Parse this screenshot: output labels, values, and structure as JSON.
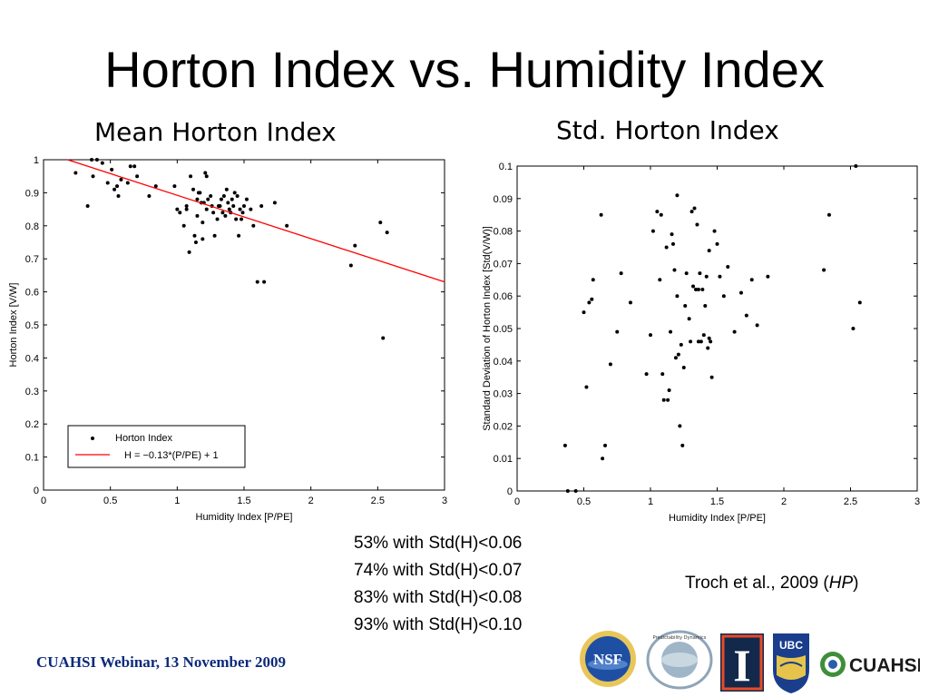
{
  "slide_title": "Horton Index vs. Humidity Index",
  "left_panel_title": "Mean Horton Index",
  "right_panel_title": "Std. Horton Index",
  "stats": [
    "53% with Std(H)<0.06",
    "74% with Std(H)<0.07",
    "83% with Std(H)<0.08",
    "93% with Std(H)<0.10"
  ],
  "citation": {
    "text": "Troch et al., 2009 (",
    "journal": "HP",
    "close": ")"
  },
  "footer": "CUAHSI Webinar, 13 November 2009",
  "logos": {
    "nsf": {
      "text": "NSF",
      "color": "#1f4fa3"
    },
    "predictability": {
      "text": "Predictability Dynamics"
    },
    "illinois": {
      "text": "I",
      "color": "#13294b",
      "accent": "#e84a27"
    },
    "ubc": {
      "text": "UBC",
      "color": "#1a3e8c"
    },
    "cuahsi": {
      "text": "CUAHSI",
      "color": "#1b1b1b",
      "accent": "#3f8f3a"
    }
  },
  "colors": {
    "points": "#000000",
    "fit_line": "#ff0000",
    "footer": "#0b2a7a"
  },
  "chart_data": [
    {
      "type": "scatter",
      "xlabel": "Humidity Index [P/PE]",
      "ylabel": "Horton Index [V/W]",
      "xlim": [
        0,
        3
      ],
      "ylim": [
        0,
        1
      ],
      "xticks": [
        0,
        0.5,
        1,
        1.5,
        2,
        2.5,
        3
      ],
      "yticks": [
        0,
        0.1,
        0.2,
        0.3,
        0.4,
        0.5,
        0.6,
        0.7,
        0.8,
        0.9,
        1
      ],
      "grid": false,
      "legend": {
        "placement": "bottom-left",
        "entries": [
          "Horton Index",
          "H = −0.13*(P/PE) + 1"
        ]
      },
      "series": [
        {
          "name": "Horton Index",
          "kind": "points",
          "x": [
            0.24,
            0.33,
            0.36,
            0.37,
            0.4,
            0.44,
            0.48,
            0.51,
            0.53,
            0.55,
            0.56,
            0.58,
            0.63,
            0.65,
            0.68,
            0.7,
            0.79,
            0.84,
            0.98,
            1.0,
            1.02,
            1.05,
            1.07,
            1.09,
            1.1,
            1.12,
            1.13,
            1.14,
            1.15,
            1.15,
            1.16,
            1.17,
            1.18,
            1.19,
            1.2,
            1.21,
            1.22,
            1.22,
            1.23,
            1.25,
            1.27,
            1.28,
            1.3,
            1.32,
            1.33,
            1.34,
            1.35,
            1.36,
            1.37,
            1.38,
            1.4,
            1.41,
            1.42,
            1.43,
            1.45,
            1.46,
            1.47,
            1.49,
            1.5,
            1.52,
            1.55,
            1.57,
            1.6,
            1.63,
            1.65,
            1.73,
            1.82,
            2.3,
            2.33,
            2.52,
            2.54,
            2.57,
            1.07,
            1.19,
            1.26,
            1.31,
            1.39,
            1.44,
            1.48
          ],
          "y": [
            0.96,
            0.86,
            1.0,
            0.95,
            1.0,
            0.99,
            0.93,
            0.97,
            0.91,
            0.92,
            0.89,
            0.94,
            0.93,
            0.98,
            0.98,
            0.95,
            0.89,
            0.92,
            0.92,
            0.85,
            0.84,
            0.8,
            0.86,
            0.72,
            0.95,
            0.91,
            0.77,
            0.75,
            0.88,
            0.83,
            0.9,
            0.9,
            0.87,
            0.81,
            0.87,
            0.96,
            0.85,
            0.95,
            0.88,
            0.89,
            0.84,
            0.77,
            0.82,
            0.86,
            0.88,
            0.84,
            0.89,
            0.83,
            0.91,
            0.87,
            0.84,
            0.88,
            0.86,
            0.9,
            0.89,
            0.77,
            0.85,
            0.84,
            0.86,
            0.88,
            0.85,
            0.8,
            0.63,
            0.86,
            0.63,
            0.87,
            0.8,
            0.68,
            0.74,
            0.81,
            0.46,
            0.78,
            0.85,
            0.76,
            0.86,
            0.86,
            0.85,
            0.82,
            0.82
          ]
        },
        {
          "name": "H = −0.13*(P/PE) + 1",
          "kind": "line",
          "x": [
            0.18,
            3.0
          ],
          "y": [
            1.0,
            0.63
          ]
        }
      ]
    },
    {
      "type": "scatter",
      "xlabel": "Humidity Index [P/PE]",
      "ylabel": "Standard Deviation of Horton Index [Std(V/W)]",
      "xlim": [
        0,
        3
      ],
      "ylim": [
        0,
        0.1
      ],
      "xticks": [
        0,
        0.5,
        1,
        1.5,
        2,
        2.5,
        3
      ],
      "yticks": [
        0,
        0.01,
        0.02,
        0.03,
        0.04,
        0.05,
        0.06,
        0.07,
        0.08,
        0.09,
        0.1
      ],
      "grid": false,
      "series": [
        {
          "kind": "points",
          "x": [
            0.36,
            0.38,
            0.44,
            0.5,
            0.52,
            0.54,
            0.56,
            0.57,
            0.63,
            0.64,
            0.66,
            0.7,
            0.75,
            0.78,
            0.85,
            0.97,
            1.0,
            1.02,
            1.05,
            1.07,
            1.08,
            1.1,
            1.12,
            1.14,
            1.15,
            1.16,
            1.17,
            1.18,
            1.2,
            1.2,
            1.21,
            1.22,
            1.24,
            1.25,
            1.26,
            1.27,
            1.29,
            1.31,
            1.32,
            1.33,
            1.34,
            1.35,
            1.36,
            1.37,
            1.38,
            1.39,
            1.4,
            1.41,
            1.42,
            1.43,
            1.44,
            1.45,
            1.46,
            1.48,
            1.5,
            1.52,
            1.55,
            1.58,
            1.63,
            1.68,
            1.72,
            1.76,
            1.8,
            1.88,
            2.3,
            2.34,
            2.52,
            2.54,
            2.57,
            1.09,
            1.13,
            1.19,
            1.23,
            1.3,
            1.36,
            1.44
          ],
          "y": [
            0.014,
            0.0,
            0.0,
            0.055,
            0.032,
            0.058,
            0.059,
            0.065,
            0.085,
            0.01,
            0.014,
            0.039,
            0.049,
            0.067,
            0.058,
            0.036,
            0.048,
            0.08,
            0.086,
            0.065,
            0.085,
            0.028,
            0.075,
            0.031,
            0.049,
            0.079,
            0.076,
            0.068,
            0.091,
            0.06,
            0.042,
            0.02,
            0.014,
            0.038,
            0.057,
            0.067,
            0.053,
            0.086,
            0.063,
            0.087,
            0.062,
            0.082,
            0.046,
            0.067,
            0.046,
            0.062,
            0.048,
            0.057,
            0.066,
            0.044,
            0.074,
            0.046,
            0.035,
            0.08,
            0.076,
            0.066,
            0.06,
            0.069,
            0.049,
            0.061,
            0.054,
            0.065,
            0.051,
            0.066,
            0.068,
            0.085,
            0.05,
            0.1,
            0.058,
            0.036,
            0.028,
            0.041,
            0.045,
            0.046,
            0.062,
            0.047
          ]
        }
      ]
    }
  ]
}
